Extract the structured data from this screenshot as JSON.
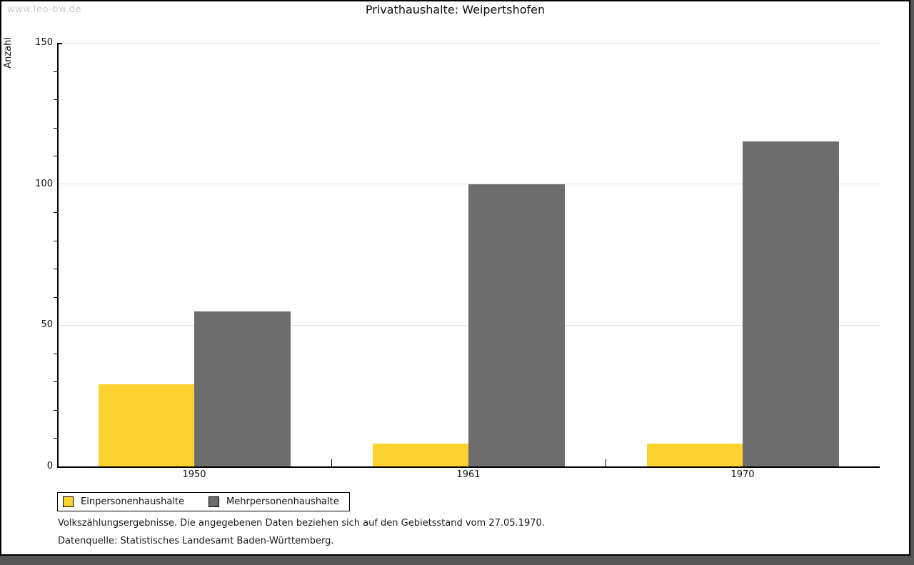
{
  "page": {
    "watermark": "www.leo-bw.de",
    "title": "Privathaushalte: Weipertshofen",
    "footnote_line1": "Volkszählungsergebnisse. Die angegebenen Daten beziehen sich auf den Gebietsstand vom 27.05.1970.",
    "footnote_line2": "Datenquelle: Statistisches Landesamt Baden-Württemberg."
  },
  "colors": {
    "series_yellow": "#FCD330",
    "series_gray": "#6D6D6D",
    "gridline": "#E0E0E0",
    "axis": "#000000",
    "watermark": "#CCCCCC",
    "page_background": "#FFFFFF",
    "window_background": "#555555"
  },
  "chart_data": {
    "type": "bar",
    "title": "Privathaushalte: Weipertshofen",
    "categories": [
      "1950",
      "1961",
      "1970"
    ],
    "series": [
      {
        "name": "Einpersonenhaushalte",
        "color": "#FCD330",
        "values": [
          29,
          8,
          8
        ]
      },
      {
        "name": "Mehrpersonenhaushalte",
        "color": "#6D6D6D",
        "values": [
          55,
          100,
          115
        ]
      }
    ],
    "xlabel": "",
    "ylabel": "Anzahl",
    "ylim": [
      0,
      150
    ],
    "yticks": [
      0,
      50,
      100,
      150
    ],
    "minor_tick_step": 10,
    "grid": true,
    "legend_position": "bottom-left"
  }
}
